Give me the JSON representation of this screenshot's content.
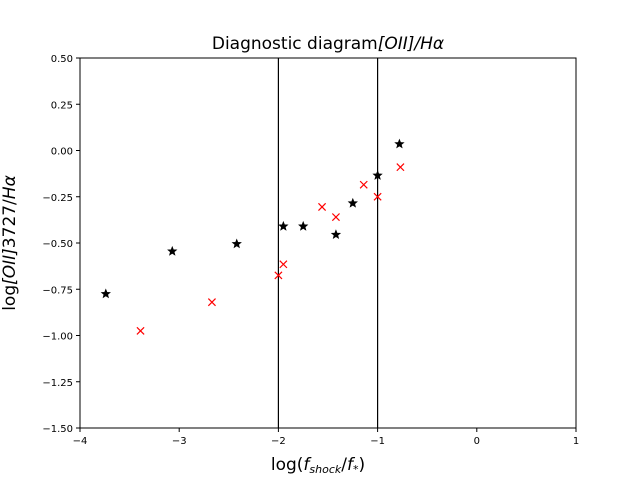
{
  "chart_data": {
    "type": "scatter",
    "title": {
      "text": "Diagnostic diagram",
      "math": "[OII]/Hα"
    },
    "xlabel": {
      "prefix": "log(",
      "f_shock": "f",
      "f_shock_sub": "shock",
      "slash": "/",
      "f_star": "f",
      "f_star_sub": "*",
      "suffix": ")"
    },
    "ylabel": {
      "prefix": "log",
      "math": "[OII]",
      "wavelength": "3727",
      "slash": "/",
      "halpha": "Hα"
    },
    "xlim": [
      -4,
      1
    ],
    "ylim": [
      -1.5,
      0.5
    ],
    "xticks": [
      -4,
      -3,
      -2,
      -1,
      0,
      1
    ],
    "xtick_labels": [
      "−4",
      "−3",
      "−2",
      "−1",
      "0",
      "1"
    ],
    "yticks": [
      -1.5,
      -1.25,
      -1.0,
      -0.75,
      -0.5,
      -0.25,
      0.0,
      0.25,
      0.5
    ],
    "ytick_labels": [
      "−1.50",
      "−1.25",
      "−1.00",
      "−0.75",
      "−0.50",
      "−0.25",
      "0.00",
      "0.25",
      "0.50"
    ],
    "grid": false,
    "vlines": [
      -2,
      -1
    ],
    "series": [
      {
        "marker": "star",
        "color": "#000000",
        "points": [
          [
            -3.74,
            -0.775
          ],
          [
            -3.07,
            -0.545
          ],
          [
            -2.42,
            -0.505
          ],
          [
            -1.95,
            -0.41
          ],
          [
            -1.75,
            -0.41
          ],
          [
            -1.42,
            -0.455
          ],
          [
            -1.25,
            -0.285
          ],
          [
            -1.0,
            -0.135
          ],
          [
            -0.78,
            0.035
          ]
        ]
      },
      {
        "marker": "x",
        "color": "#ff0000",
        "points": [
          [
            -3.39,
            -0.975
          ],
          [
            -2.67,
            -0.82
          ],
          [
            -2.0,
            -0.675
          ],
          [
            -1.95,
            -0.615
          ],
          [
            -1.56,
            -0.305
          ],
          [
            -1.42,
            -0.36
          ],
          [
            -1.14,
            -0.185
          ],
          [
            -1.0,
            -0.25
          ],
          [
            -0.77,
            -0.09
          ]
        ]
      }
    ]
  }
}
